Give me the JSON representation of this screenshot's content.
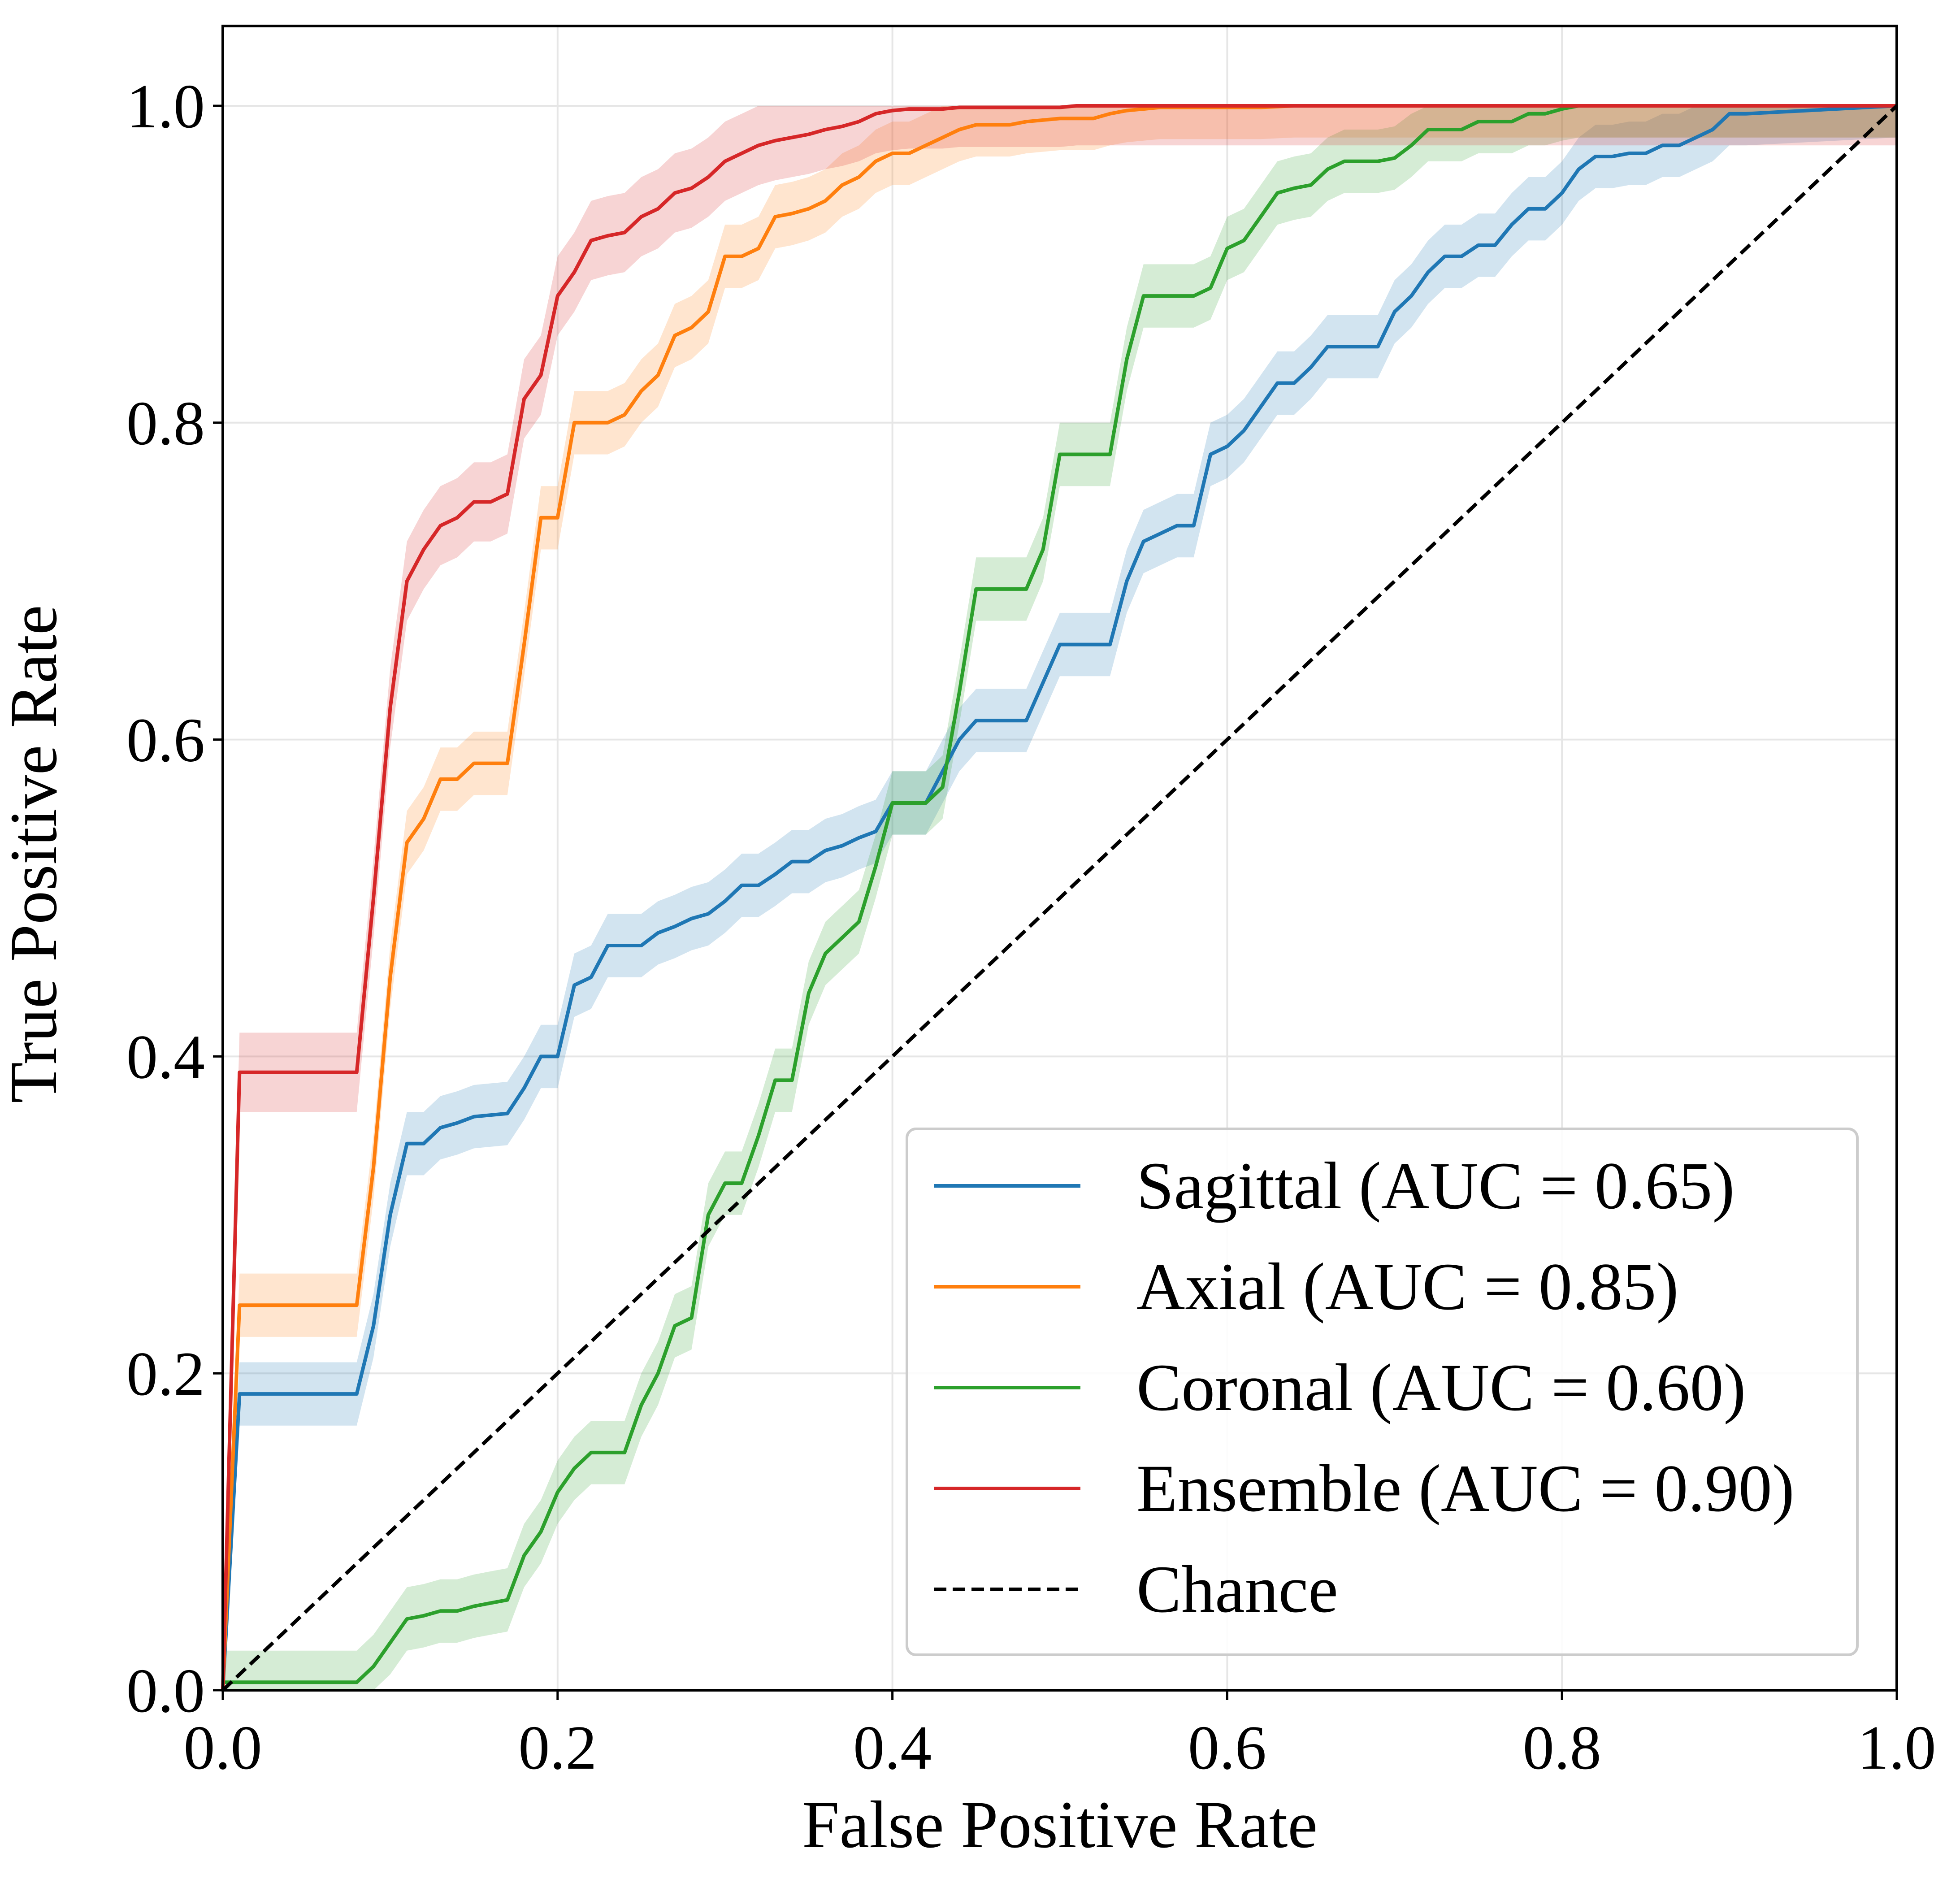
{
  "chart_data": {
    "type": "line",
    "title": "",
    "xlabel": "False Positive Rate",
    "ylabel": "True Positive Rate",
    "xlim": [
      0.0,
      1.0
    ],
    "ylim": [
      0.0,
      1.05
    ],
    "xticks": [
      "0.0",
      "0.2",
      "0.4",
      "0.6",
      "0.8",
      "1.0"
    ],
    "yticks": [
      "0.0",
      "0.2",
      "0.4",
      "0.6",
      "0.8",
      "1.0"
    ],
    "grid": true,
    "legend_position": "lower-right",
    "series": [
      {
        "name": "Sagittal (AUC = 0.65)",
        "color": "#1f77b4",
        "band": 0.02,
        "x": [
          0.0,
          0.01,
          0.08,
          0.09,
          0.1,
          0.11,
          0.12,
          0.13,
          0.14,
          0.15,
          0.17,
          0.18,
          0.19,
          0.2,
          0.21,
          0.22,
          0.23,
          0.24,
          0.25,
          0.26,
          0.27,
          0.28,
          0.29,
          0.3,
          0.31,
          0.32,
          0.33,
          0.34,
          0.35,
          0.36,
          0.37,
          0.38,
          0.39,
          0.4,
          0.41,
          0.42,
          0.43,
          0.44,
          0.45,
          0.46,
          0.47,
          0.48,
          0.5,
          0.51,
          0.52,
          0.53,
          0.54,
          0.55,
          0.56,
          0.57,
          0.58,
          0.59,
          0.6,
          0.61,
          0.62,
          0.63,
          0.64,
          0.65,
          0.66,
          0.67,
          0.68,
          0.69,
          0.7,
          0.71,
          0.72,
          0.73,
          0.74,
          0.75,
          0.76,
          0.77,
          0.78,
          0.79,
          0.8,
          0.81,
          0.82,
          0.83,
          0.84,
          0.85,
          0.86,
          0.87,
          0.88,
          0.89,
          0.9,
          0.91,
          1.0
        ],
        "y": [
          0.0,
          0.187,
          0.187,
          0.23,
          0.3,
          0.345,
          0.345,
          0.355,
          0.358,
          0.362,
          0.364,
          0.38,
          0.4,
          0.4,
          0.445,
          0.45,
          0.47,
          0.47,
          0.47,
          0.478,
          0.482,
          0.487,
          0.49,
          0.498,
          0.508,
          0.508,
          0.515,
          0.523,
          0.523,
          0.53,
          0.533,
          0.538,
          0.542,
          0.56,
          0.56,
          0.56,
          0.58,
          0.6,
          0.612,
          0.612,
          0.612,
          0.612,
          0.66,
          0.66,
          0.66,
          0.66,
          0.7,
          0.725,
          0.73,
          0.735,
          0.735,
          0.78,
          0.785,
          0.795,
          0.81,
          0.825,
          0.825,
          0.835,
          0.848,
          0.848,
          0.848,
          0.848,
          0.87,
          0.88,
          0.895,
          0.905,
          0.905,
          0.912,
          0.912,
          0.925,
          0.935,
          0.935,
          0.945,
          0.96,
          0.968,
          0.968,
          0.97,
          0.97,
          0.975,
          0.975,
          0.98,
          0.985,
          0.995,
          0.995,
          1.0
        ]
      },
      {
        "name": "Axial (AUC = 0.85)",
        "color": "#ff7f0e",
        "band": 0.02,
        "x": [
          0.0,
          0.01,
          0.08,
          0.09,
          0.1,
          0.11,
          0.12,
          0.13,
          0.14,
          0.15,
          0.17,
          0.18,
          0.19,
          0.2,
          0.21,
          0.22,
          0.23,
          0.24,
          0.25,
          0.26,
          0.27,
          0.28,
          0.29,
          0.3,
          0.31,
          0.32,
          0.33,
          0.34,
          0.35,
          0.36,
          0.37,
          0.38,
          0.39,
          0.4,
          0.41,
          0.42,
          0.43,
          0.44,
          0.45,
          0.46,
          0.47,
          0.48,
          0.5,
          0.51,
          0.52,
          0.53,
          0.54,
          0.55,
          0.56,
          0.58,
          0.6,
          0.62,
          0.64,
          1.0
        ],
        "y": [
          0.0,
          0.243,
          0.243,
          0.33,
          0.45,
          0.535,
          0.55,
          0.575,
          0.575,
          0.585,
          0.585,
          0.66,
          0.74,
          0.74,
          0.8,
          0.8,
          0.8,
          0.805,
          0.82,
          0.83,
          0.855,
          0.86,
          0.87,
          0.905,
          0.905,
          0.91,
          0.93,
          0.932,
          0.935,
          0.94,
          0.95,
          0.955,
          0.965,
          0.97,
          0.97,
          0.975,
          0.98,
          0.985,
          0.988,
          0.988,
          0.988,
          0.99,
          0.992,
          0.992,
          0.992,
          0.995,
          0.997,
          0.998,
          0.999,
          0.999,
          0.999,
          0.999,
          1.0,
          1.0
        ]
      },
      {
        "name": "Coronal (AUC = 0.60)",
        "color": "#2ca02c",
        "band": 0.02,
        "x": [
          0.0,
          0.08,
          0.09,
          0.1,
          0.11,
          0.12,
          0.13,
          0.14,
          0.15,
          0.16,
          0.17,
          0.18,
          0.19,
          0.2,
          0.21,
          0.22,
          0.23,
          0.24,
          0.25,
          0.26,
          0.27,
          0.28,
          0.29,
          0.3,
          0.31,
          0.32,
          0.33,
          0.34,
          0.35,
          0.36,
          0.37,
          0.38,
          0.39,
          0.4,
          0.41,
          0.42,
          0.43,
          0.44,
          0.45,
          0.46,
          0.47,
          0.48,
          0.49,
          0.5,
          0.51,
          0.52,
          0.53,
          0.54,
          0.55,
          0.56,
          0.57,
          0.58,
          0.59,
          0.6,
          0.61,
          0.62,
          0.63,
          0.64,
          0.65,
          0.66,
          0.67,
          0.68,
          0.69,
          0.7,
          0.71,
          0.72,
          0.73,
          0.74,
          0.75,
          0.76,
          0.77,
          0.78,
          0.79,
          0.8,
          0.81,
          0.82,
          1.0
        ],
        "y": [
          0.005,
          0.005,
          0.015,
          0.03,
          0.045,
          0.047,
          0.05,
          0.05,
          0.053,
          0.055,
          0.057,
          0.085,
          0.1,
          0.125,
          0.14,
          0.15,
          0.15,
          0.15,
          0.18,
          0.2,
          0.23,
          0.235,
          0.3,
          0.32,
          0.32,
          0.35,
          0.385,
          0.385,
          0.44,
          0.465,
          0.475,
          0.485,
          0.52,
          0.56,
          0.56,
          0.56,
          0.57,
          0.63,
          0.695,
          0.695,
          0.695,
          0.695,
          0.72,
          0.78,
          0.78,
          0.78,
          0.78,
          0.84,
          0.88,
          0.88,
          0.88,
          0.88,
          0.885,
          0.91,
          0.915,
          0.93,
          0.945,
          0.948,
          0.95,
          0.96,
          0.965,
          0.965,
          0.965,
          0.967,
          0.975,
          0.985,
          0.985,
          0.985,
          0.99,
          0.99,
          0.99,
          0.995,
          0.995,
          0.998,
          1.0,
          1.0,
          1.0
        ]
      },
      {
        "name": "Ensemble (AUC = 0.90)",
        "color": "#d62728",
        "band": 0.025,
        "x": [
          0.0,
          0.01,
          0.08,
          0.09,
          0.1,
          0.11,
          0.12,
          0.13,
          0.14,
          0.15,
          0.16,
          0.17,
          0.18,
          0.19,
          0.2,
          0.21,
          0.22,
          0.23,
          0.24,
          0.25,
          0.26,
          0.27,
          0.28,
          0.29,
          0.3,
          0.31,
          0.32,
          0.33,
          0.34,
          0.35,
          0.36,
          0.37,
          0.38,
          0.39,
          0.4,
          0.41,
          0.42,
          0.43,
          0.44,
          0.45,
          0.46,
          0.47,
          0.48,
          0.49,
          0.5,
          0.51,
          1.0
        ],
        "y": [
          0.0,
          0.39,
          0.39,
          0.5,
          0.62,
          0.7,
          0.72,
          0.735,
          0.74,
          0.75,
          0.75,
          0.755,
          0.815,
          0.83,
          0.88,
          0.895,
          0.915,
          0.918,
          0.92,
          0.93,
          0.935,
          0.945,
          0.948,
          0.955,
          0.965,
          0.97,
          0.975,
          0.978,
          0.98,
          0.982,
          0.985,
          0.987,
          0.99,
          0.995,
          0.997,
          0.998,
          0.998,
          0.998,
          0.999,
          0.999,
          0.999,
          0.999,
          0.999,
          0.999,
          0.999,
          1.0,
          1.0
        ]
      },
      {
        "name": "Chance",
        "color": "#000000",
        "dashed": true,
        "x": [
          0.0,
          1.0
        ],
        "y": [
          0.0,
          1.0
        ]
      }
    ]
  }
}
